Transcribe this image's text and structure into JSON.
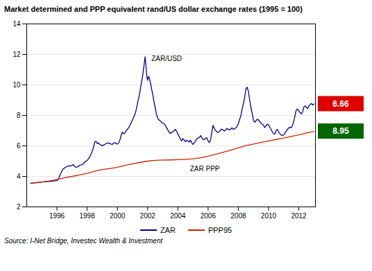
{
  "chart_data": {
    "type": "line",
    "title": "Market determined and PPP equivalent rand/US dollar exchange rates (1995 = 100)",
    "source": "Source: I-Net Bridge, Investec Wealth & Investment",
    "xlim": [
      1994.0,
      2013.1
    ],
    "xticks": [
      1996,
      1998,
      2000,
      2002,
      2004,
      2006,
      2008,
      2010,
      2012
    ],
    "ylim": [
      2,
      14
    ],
    "yticks": [
      2,
      4,
      6,
      8,
      10,
      12,
      14
    ],
    "grid": true,
    "legend": "bottom",
    "series": [
      {
        "name": "ZAR",
        "color": "#00008B",
        "x": [
          1994.25,
          1994.42,
          1994.58,
          1994.75,
          1995.0,
          1995.25,
          1995.5,
          1995.75,
          1996.0,
          1996.08,
          1996.17,
          1996.25,
          1996.33,
          1996.42,
          1996.5,
          1996.58,
          1996.67,
          1996.75,
          1996.83,
          1996.92,
          1997.0,
          1997.08,
          1997.17,
          1997.25,
          1997.33,
          1997.42,
          1997.5,
          1997.58,
          1997.67,
          1997.75,
          1997.83,
          1997.92,
          1998.0,
          1998.08,
          1998.17,
          1998.25,
          1998.33,
          1998.42,
          1998.5,
          1998.58,
          1998.67,
          1998.75,
          1998.83,
          1998.92,
          1999.0,
          1999.08,
          1999.17,
          1999.25,
          1999.33,
          1999.42,
          1999.5,
          1999.58,
          1999.67,
          1999.75,
          1999.83,
          1999.92,
          2000.0,
          2000.08,
          2000.17,
          2000.25,
          2000.33,
          2000.42,
          2000.5,
          2000.58,
          2000.67,
          2000.75,
          2000.83,
          2000.92,
          2001.0,
          2001.08,
          2001.17,
          2001.25,
          2001.33,
          2001.42,
          2001.5,
          2001.58,
          2001.67,
          2001.75,
          2001.83,
          2001.88,
          2001.92,
          2001.96,
          2002.0,
          2002.04,
          2002.08,
          2002.13,
          2002.17,
          2002.25,
          2002.33,
          2002.42,
          2002.5,
          2002.58,
          2002.67,
          2002.75,
          2002.83,
          2002.92,
          2003.0,
          2003.08,
          2003.17,
          2003.25,
          2003.33,
          2003.42,
          2003.5,
          2003.58,
          2003.67,
          2003.75,
          2003.83,
          2003.92,
          2004.0,
          2004.08,
          2004.17,
          2004.25,
          2004.33,
          2004.42,
          2004.5,
          2004.58,
          2004.67,
          2004.75,
          2004.83,
          2004.92,
          2005.0,
          2005.08,
          2005.17,
          2005.25,
          2005.33,
          2005.42,
          2005.5,
          2005.58,
          2005.67,
          2005.75,
          2005.83,
          2005.92,
          2006.0,
          2006.08,
          2006.17,
          2006.25,
          2006.33,
          2006.42,
          2006.5,
          2006.58,
          2006.67,
          2006.75,
          2006.83,
          2006.92,
          2007.0,
          2007.08,
          2007.17,
          2007.25,
          2007.33,
          2007.42,
          2007.5,
          2007.58,
          2007.67,
          2007.75,
          2007.83,
          2007.92,
          2008.0,
          2008.08,
          2008.17,
          2008.25,
          2008.33,
          2008.42,
          2008.5,
          2008.58,
          2008.67,
          2008.75,
          2008.83,
          2008.92,
          2009.0,
          2009.08,
          2009.17,
          2009.25,
          2009.33,
          2009.42,
          2009.5,
          2009.58,
          2009.67,
          2009.75,
          2009.83,
          2009.92,
          2010.0,
          2010.08,
          2010.17,
          2010.25,
          2010.33,
          2010.42,
          2010.5,
          2010.58,
          2010.67,
          2010.75,
          2010.83,
          2010.92,
          2011.0,
          2011.08,
          2011.17,
          2011.25,
          2011.33,
          2011.42,
          2011.5,
          2011.58,
          2011.67,
          2011.75,
          2011.83,
          2011.92,
          2012.0,
          2012.08,
          2012.17,
          2012.25,
          2012.33,
          2012.42,
          2012.5,
          2012.58,
          2012.67,
          2012.75,
          2012.83,
          2012.92,
          2013.0
        ],
        "values": [
          3.55,
          3.57,
          3.58,
          3.6,
          3.63,
          3.65,
          3.67,
          3.7,
          3.72,
          3.8,
          4.0,
          4.2,
          4.35,
          4.5,
          4.55,
          4.6,
          4.65,
          4.68,
          4.7,
          4.68,
          4.72,
          4.78,
          4.65,
          4.6,
          4.62,
          4.65,
          4.72,
          4.75,
          4.78,
          4.82,
          4.95,
          4.98,
          5.05,
          5.15,
          5.28,
          5.45,
          5.65,
          5.9,
          6.25,
          6.3,
          6.15,
          6.2,
          6.1,
          6.05,
          6.0,
          6.05,
          6.1,
          6.15,
          6.2,
          6.18,
          6.15,
          6.12,
          6.1,
          6.18,
          6.22,
          6.15,
          6.12,
          6.2,
          6.4,
          6.7,
          6.9,
          6.8,
          6.85,
          7.0,
          7.1,
          7.2,
          7.35,
          7.55,
          7.7,
          7.9,
          8.1,
          8.4,
          8.8,
          9.2,
          9.6,
          10.1,
          10.6,
          11.2,
          11.85,
          11.4,
          10.8,
          10.5,
          10.3,
          10.5,
          10.55,
          10.4,
          10.2,
          9.8,
          9.4,
          8.9,
          8.5,
          8.1,
          7.8,
          7.7,
          7.65,
          7.55,
          7.5,
          7.45,
          7.35,
          7.2,
          7.05,
          6.9,
          6.82,
          6.88,
          6.92,
          7.0,
          7.08,
          6.95,
          6.78,
          6.62,
          6.45,
          6.32,
          6.48,
          6.38,
          6.28,
          6.38,
          6.3,
          6.25,
          6.38,
          6.2,
          6.1,
          6.2,
          6.32,
          6.45,
          6.52,
          6.55,
          6.68,
          6.55,
          6.4,
          6.42,
          6.5,
          6.52,
          6.32,
          6.22,
          6.42,
          6.95,
          7.35,
          7.12,
          7.02,
          6.92,
          6.88,
          6.95,
          7.05,
          7.1,
          7.02,
          6.98,
          7.05,
          7.15,
          7.08,
          7.05,
          7.12,
          7.18,
          7.08,
          7.12,
          7.18,
          7.28,
          7.45,
          7.72,
          8.0,
          8.4,
          8.75,
          9.2,
          9.75,
          9.85,
          9.55,
          9.0,
          8.55,
          8.1,
          7.7,
          7.55,
          7.65,
          7.75,
          7.7,
          7.6,
          7.5,
          7.42,
          7.35,
          7.2,
          7.32,
          7.42,
          7.38,
          7.22,
          7.08,
          6.92,
          6.8,
          6.78,
          7.02,
          7.08,
          6.92,
          6.8,
          6.72,
          6.68,
          6.72,
          6.82,
          6.98,
          7.08,
          7.18,
          7.22,
          7.18,
          7.35,
          7.62,
          8.0,
          8.35,
          8.42,
          8.3,
          8.18,
          8.1,
          8.22,
          8.55,
          8.62,
          8.52,
          8.45,
          8.62,
          8.72,
          8.78,
          8.68,
          8.75
        ]
      },
      {
        "name": "PPP95",
        "color": "#CC2200",
        "x": [
          1994.25,
          1995.0,
          1995.5,
          1996.0,
          1996.5,
          1997.0,
          1997.5,
          1998.0,
          1998.5,
          1999.0,
          1999.5,
          2000.0,
          2000.5,
          2001.0,
          2001.5,
          2002.0,
          2002.5,
          2003.0,
          2003.5,
          2004.0,
          2004.5,
          2005.0,
          2005.5,
          2006.0,
          2006.5,
          2007.0,
          2007.5,
          2008.0,
          2008.5,
          2009.0,
          2009.5,
          2010.0,
          2010.5,
          2011.0,
          2011.5,
          2012.0,
          2012.5,
          2013.0
        ],
        "values": [
          3.55,
          3.63,
          3.7,
          3.8,
          3.9,
          4.0,
          4.1,
          4.2,
          4.35,
          4.45,
          4.52,
          4.6,
          4.72,
          4.82,
          4.92,
          5.0,
          5.05,
          5.07,
          5.08,
          5.1,
          5.12,
          5.15,
          5.22,
          5.32,
          5.45,
          5.58,
          5.72,
          5.88,
          6.02,
          6.12,
          6.22,
          6.32,
          6.42,
          6.52,
          6.62,
          6.72,
          6.85,
          6.95
        ]
      }
    ],
    "annotations": [
      {
        "text": "ZAR/USD",
        "x": 2002.25,
        "y": 11.55
      },
      {
        "text": "ZAR PPP",
        "x": 2004.8,
        "y": 4.35
      }
    ],
    "value_boxes": [
      {
        "text": "6.66",
        "y": 8.75,
        "color": "#DD0000"
      },
      {
        "text": "8.95",
        "y": 6.95,
        "color": "#006600"
      }
    ]
  }
}
